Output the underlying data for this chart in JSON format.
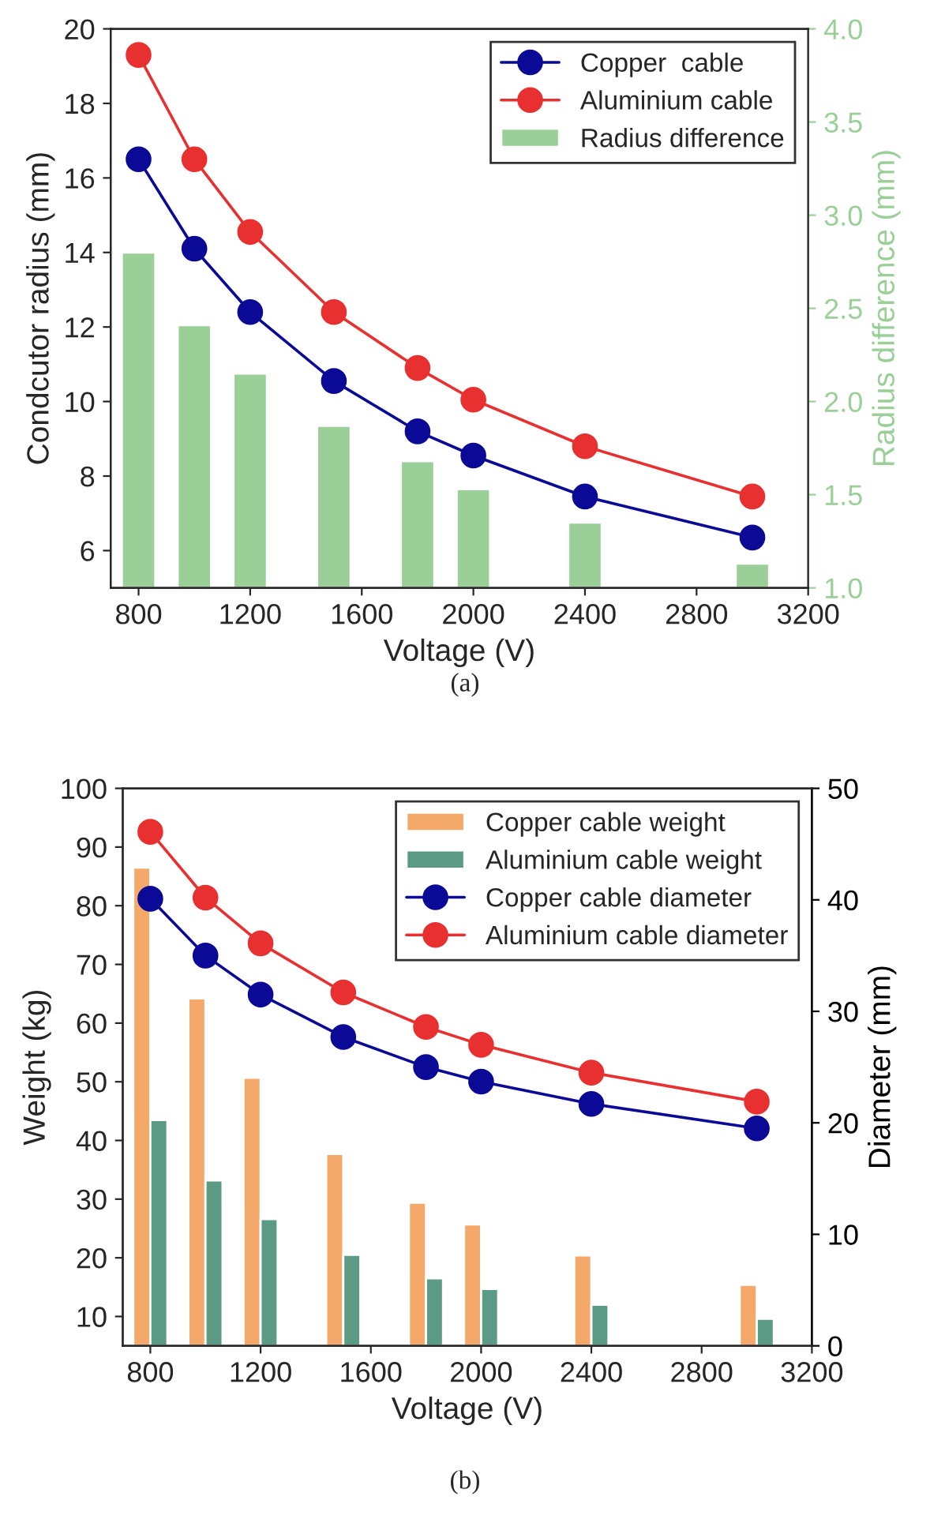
{
  "chart_data": [
    {
      "type": "line",
      "xlabel": "Voltage (V)",
      "ylabel": "Condcutor radius (mm)",
      "y2label": "Radius difference (mm)",
      "xlim": [
        700,
        3200
      ],
      "xticks": [
        800,
        1200,
        1600,
        2000,
        2400,
        2800,
        3200
      ],
      "ylim": [
        5,
        20
      ],
      "yticks": [
        6,
        8,
        10,
        12,
        14,
        16,
        18,
        20
      ],
      "y2lim": [
        1.0,
        4.0
      ],
      "y2ticks": [
        {
          "value": 1.0,
          "label": "1.0"
        },
        {
          "value": 1.5,
          "label": "1.5"
        },
        {
          "value": 2.0,
          "label": "2.0"
        },
        {
          "value": 2.5,
          "label": "2.5"
        },
        {
          "value": 3.0,
          "label": "3.0"
        },
        {
          "value": 3.5,
          "label": "3.5"
        },
        {
          "value": 4.0,
          "label": "4.0"
        }
      ],
      "legend": "top right",
      "marker": "circle",
      "grid": false,
      "annotations": [
        "(a)"
      ],
      "series": [
        {
          "name": "Copper  cable",
          "color": "#0a0a96",
          "x": [
            800,
            1000,
            1200,
            1500,
            1800,
            2000,
            2400,
            3000
          ],
          "values": [
            16.5,
            14.1,
            12.4,
            10.55,
            9.2,
            8.55,
            7.45,
            6.35
          ]
        },
        {
          "name": "Aluminium cable",
          "color": "#e83030",
          "x": [
            800,
            1000,
            1200,
            1500,
            1800,
            2000,
            2400,
            3000
          ],
          "values": [
            19.3,
            16.5,
            14.55,
            12.4,
            10.9,
            10.05,
            8.8,
            7.45
          ]
        },
        {
          "name": "Radius difference",
          "type": "bar",
          "axis": "y2",
          "color": "#9bcf98",
          "x": [
            800,
            1000,
            1200,
            1500,
            1800,
            2000,
            2400,
            3000
          ],
          "values": [
            2.8,
            2.41,
            2.15,
            1.87,
            1.68,
            1.53,
            1.35,
            1.13
          ]
        }
      ]
    },
    {
      "type": "line",
      "xlabel": "Voltage (V)",
      "ylabel": "Weight (kg)",
      "y2label": "Diameter (mm)",
      "xlim": [
        700,
        3200
      ],
      "xticks": [
        800,
        1200,
        1600,
        2000,
        2400,
        2800,
        3200
      ],
      "ylim": [
        5,
        100
      ],
      "yticks": [
        10,
        20,
        30,
        40,
        50,
        60,
        70,
        80,
        90,
        100
      ],
      "y2lim": [
        0,
        50
      ],
      "y2ticks": [
        0,
        10,
        20,
        30,
        40,
        50
      ],
      "legend": "top right",
      "marker": "circle",
      "grid": false,
      "annotations": [
        "(b)"
      ],
      "series": [
        {
          "name": "Copper cable weight",
          "type": "bar",
          "color": "#f4a96a",
          "x": [
            800,
            1000,
            1200,
            1500,
            1800,
            2000,
            2400,
            3000
          ],
          "values": [
            86.5,
            64.2,
            50.7,
            37.7,
            29.4,
            25.7,
            20.4,
            15.4
          ]
        },
        {
          "name": "Aluminium cable weight",
          "type": "bar",
          "color": "#5b9a84",
          "x": [
            800,
            1000,
            1200,
            1500,
            1800,
            2000,
            2400,
            3000
          ],
          "values": [
            43.5,
            33.2,
            26.6,
            20.5,
            16.5,
            14.7,
            12.0,
            9.6
          ]
        },
        {
          "name": "Copper cable diameter",
          "axis": "y2",
          "color": "#0a0a96",
          "x": [
            800,
            1000,
            1200,
            1500,
            1800,
            2000,
            2400,
            3000
          ],
          "values": [
            40.1,
            35.0,
            31.5,
            27.7,
            25.0,
            23.7,
            21.7,
            19.5
          ]
        },
        {
          "name": "Aluminium cable diameter",
          "axis": "y2",
          "color": "#e83030",
          "x": [
            800,
            1000,
            1200,
            1500,
            1800,
            2000,
            2400,
            3000
          ],
          "values": [
            46.1,
            40.2,
            36.1,
            31.7,
            28.6,
            27.0,
            24.5,
            21.9
          ]
        }
      ]
    }
  ]
}
